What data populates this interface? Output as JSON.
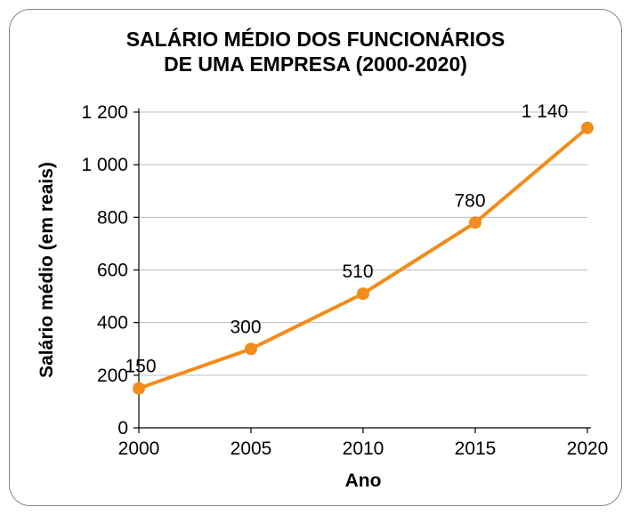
{
  "title": {
    "line1": "SALÁRIO MÉDIO DOS FUNCIONÁRIOS",
    "line2": "DE UMA EMPRESA (2000-2020)",
    "fontsize": 23,
    "color": "#000000"
  },
  "chart": {
    "type": "line",
    "series_color": "#f28c1a",
    "line_width": 4,
    "marker_style": "circle",
    "marker_radius": 7,
    "marker_fill": "#f28c1a",
    "background_color": "#ffffff",
    "grid_color": "#bdbcbc",
    "axis_color": "#000000",
    "x": {
      "label": "Ano",
      "categories": [
        "2000",
        "2005",
        "2010",
        "2015",
        "2020"
      ],
      "tick_fontsize": 21,
      "label_fontsize": 21
    },
    "y": {
      "label": "Salário médio (em reais)",
      "min": 0,
      "max": 1200,
      "tick_step": 200,
      "ticks": [
        "0",
        "200",
        "400",
        "600",
        "800",
        "1 000",
        "1 200"
      ],
      "tick_fontsize": 21,
      "label_fontsize": 21
    },
    "values": [
      150,
      300,
      510,
      780,
      1140
    ],
    "data_labels": [
      "150",
      "300",
      "510",
      "780",
      "1 140"
    ],
    "data_label_fontsize": 21
  },
  "card": {
    "border_color": "#888888",
    "border_radius": 24
  }
}
